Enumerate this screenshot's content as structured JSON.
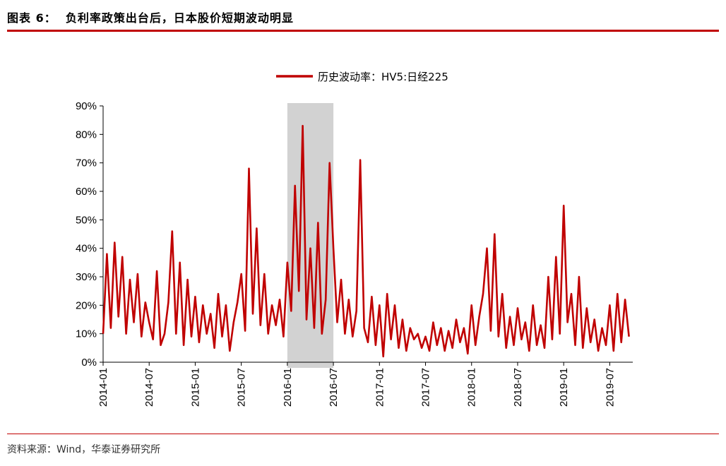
{
  "header": {
    "title": "图表 6：  负利率政策出台后，日本股价短期波动明显"
  },
  "source": "资料来源：Wind，华泰证券研究所",
  "chart_data": {
    "type": "line",
    "legend": "历史波动率：HV5:日经225",
    "legend_position": "top-center",
    "grid": false,
    "series_color": "#c00000",
    "highlight_color": "#c0c0c0",
    "highlight_range": [
      "2016-01",
      "2016-07"
    ],
    "xlim": [
      "2014-01",
      "2019-10"
    ],
    "x_ticks": [
      "2014-01",
      "2014-07",
      "2015-01",
      "2015-07",
      "2016-01",
      "2016-07",
      "2017-01",
      "2017-07",
      "2018-01",
      "2018-07",
      "2019-01",
      "2019-07"
    ],
    "ylim": [
      0,
      90
    ],
    "y_ticks": [
      "0%",
      "10%",
      "20%",
      "30%",
      "40%",
      "50%",
      "60%",
      "70%",
      "80%",
      "90%"
    ],
    "series": [
      {
        "name": "历史波动率：HV5:日经225",
        "x": [
          "2014-01",
          "2014-01",
          "2014-02",
          "2014-02",
          "2014-03",
          "2014-03",
          "2014-04",
          "2014-04",
          "2014-05",
          "2014-05",
          "2014-06",
          "2014-06",
          "2014-07",
          "2014-07",
          "2014-08",
          "2014-08",
          "2014-09",
          "2014-09",
          "2014-10",
          "2014-10",
          "2014-11",
          "2014-11",
          "2014-12",
          "2014-12",
          "2015-01",
          "2015-01",
          "2015-02",
          "2015-02",
          "2015-03",
          "2015-03",
          "2015-04",
          "2015-04",
          "2015-05",
          "2015-05",
          "2015-06",
          "2015-06",
          "2015-07",
          "2015-07",
          "2015-08",
          "2015-08",
          "2015-09",
          "2015-09",
          "2015-10",
          "2015-10",
          "2015-11",
          "2015-11",
          "2015-12",
          "2015-12",
          "2016-01",
          "2016-01",
          "2016-02",
          "2016-02",
          "2016-03",
          "2016-03",
          "2016-04",
          "2016-04",
          "2016-05",
          "2016-05",
          "2016-06",
          "2016-06",
          "2016-07",
          "2016-07",
          "2016-08",
          "2016-08",
          "2016-09",
          "2016-09",
          "2016-10",
          "2016-10",
          "2016-11",
          "2016-11",
          "2016-12",
          "2016-12",
          "2017-01",
          "2017-01",
          "2017-02",
          "2017-02",
          "2017-03",
          "2017-03",
          "2017-04",
          "2017-04",
          "2017-05",
          "2017-05",
          "2017-06",
          "2017-06",
          "2017-07",
          "2017-07",
          "2017-08",
          "2017-08",
          "2017-09",
          "2017-09",
          "2017-10",
          "2017-10",
          "2017-11",
          "2017-11",
          "2017-12",
          "2017-12",
          "2018-01",
          "2018-01",
          "2018-02",
          "2018-02",
          "2018-03",
          "2018-03",
          "2018-04",
          "2018-04",
          "2018-05",
          "2018-05",
          "2018-06",
          "2018-06",
          "2018-07",
          "2018-07",
          "2018-08",
          "2018-08",
          "2018-09",
          "2018-09",
          "2018-10",
          "2018-10",
          "2018-11",
          "2018-11",
          "2018-12",
          "2018-12",
          "2019-01",
          "2019-01",
          "2019-02",
          "2019-02",
          "2019-03",
          "2019-03",
          "2019-04",
          "2019-04",
          "2019-05",
          "2019-05",
          "2019-06",
          "2019-06",
          "2019-07",
          "2019-07",
          "2019-08",
          "2019-08",
          "2019-09",
          "2019-09"
        ],
        "values": [
          10,
          38,
          12,
          42,
          16,
          37,
          10,
          29,
          14,
          31,
          9,
          21,
          14,
          8,
          32,
          6,
          10,
          21,
          46,
          10,
          35,
          6,
          29,
          9,
          23,
          7,
          20,
          10,
          17,
          5,
          24,
          9,
          20,
          4,
          14,
          21,
          31,
          11,
          68,
          17,
          47,
          13,
          31,
          10,
          20,
          13,
          22,
          9,
          35,
          18,
          62,
          25,
          83,
          15,
          40,
          12,
          49,
          10,
          22,
          70,
          40,
          14,
          29,
          10,
          22,
          9,
          18,
          71,
          12,
          7,
          23,
          6,
          20,
          2,
          24,
          8,
          20,
          5,
          15,
          4,
          12,
          8,
          10,
          5,
          9,
          4,
          14,
          6,
          12,
          4,
          11,
          5,
          15,
          7,
          12,
          3,
          20,
          6,
          16,
          24,
          40,
          11,
          45,
          9,
          24,
          5,
          16,
          6,
          19,
          8,
          14,
          4,
          20,
          6,
          13,
          5,
          30,
          8,
          37,
          10,
          55,
          14,
          24,
          6,
          30,
          5,
          19,
          7,
          15,
          4,
          12,
          6,
          20,
          4,
          24,
          7,
          22,
          9
        ]
      }
    ]
  }
}
